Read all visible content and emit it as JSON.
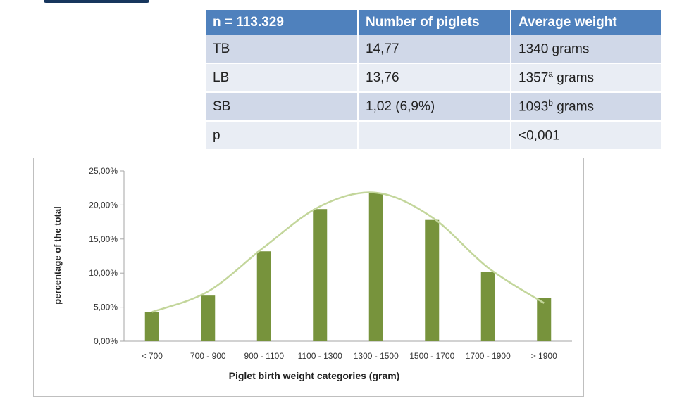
{
  "table": {
    "headers": [
      "n = 113.329",
      "Number of piglets",
      "Average weight"
    ],
    "rows": [
      {
        "label": "TB",
        "piglets": "14,77",
        "weight": "1340",
        "sup": "",
        "unit": " grams"
      },
      {
        "label": "LB",
        "piglets": "13,76",
        "weight": "1357",
        "sup": "a",
        "unit": " grams"
      },
      {
        "label": "SB",
        "piglets": "1,02 (6,9%)",
        "weight": "1093",
        "sup": "b",
        "unit": " grams"
      },
      {
        "label": "p",
        "piglets": "",
        "weight": "<0,001",
        "sup": "",
        "unit": ""
      }
    ]
  },
  "chart_data": {
    "type": "bar",
    "categories": [
      "< 700",
      "700 - 900",
      "900 - 1100",
      "1100 - 1300",
      "1300 - 1500",
      "1500 - 1700",
      "1700 - 1900",
      "> 1900"
    ],
    "values": [
      4.3,
      6.7,
      13.2,
      19.4,
      21.8,
      17.8,
      10.2,
      6.4
    ],
    "trend_values": [
      4.3,
      7.3,
      13.8,
      19.8,
      21.8,
      18.2,
      10.8,
      5.6
    ],
    "ytick_labels": [
      "0,00%",
      "5,00%",
      "10,00%",
      "15,00%",
      "20,00%",
      "25,00%"
    ],
    "ylim": [
      0,
      25
    ],
    "xlabel": "Piglet birth weight  categories (gram)",
    "ylabel": "percentage of the total",
    "bar_color": "#77933c",
    "trend_color": "#c3d69b",
    "grid": false,
    "legend": "none"
  }
}
